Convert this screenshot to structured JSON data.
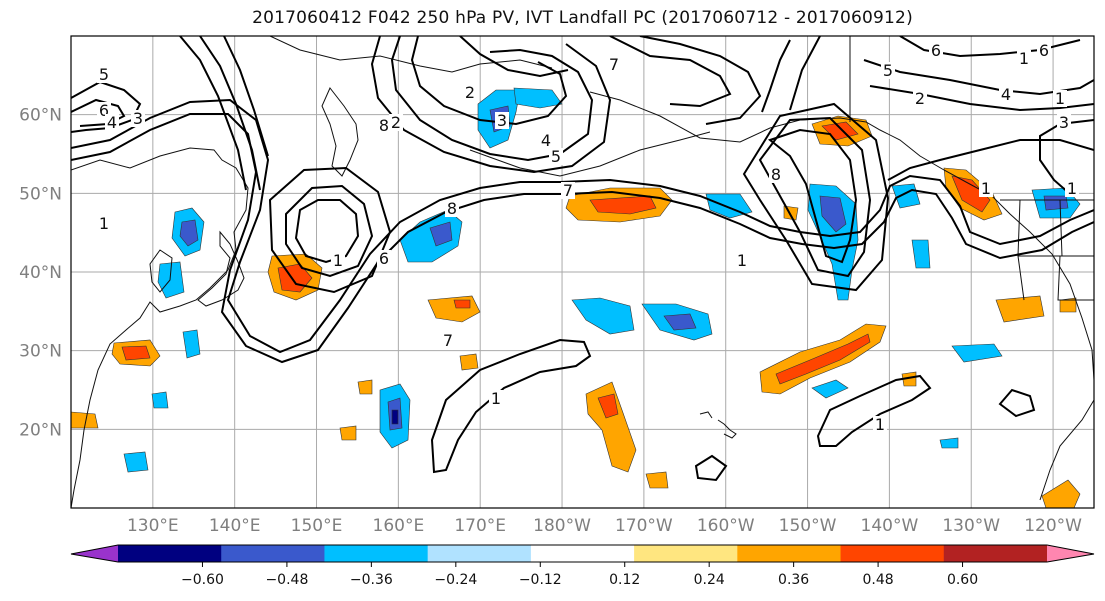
{
  "title": "2017060412 F042 250 hPa PV, IVT Landfall PC (2017060712 - 2017060912)",
  "map": {
    "extent": {
      "lon": [
        120,
        245
      ],
      "lat": [
        10,
        70
      ]
    },
    "lat_ticks": [
      {
        "lat": 20,
        "label": "20°N"
      },
      {
        "lat": 30,
        "label": "30°N"
      },
      {
        "lat": 40,
        "label": "40°N"
      },
      {
        "lat": 50,
        "label": "50°N"
      },
      {
        "lat": 60,
        "label": "60°N"
      }
    ],
    "lon_ticks": [
      {
        "lon": 130,
        "label": "130°E"
      },
      {
        "lon": 140,
        "label": "140°E"
      },
      {
        "lon": 150,
        "label": "150°E"
      },
      {
        "lon": 160,
        "label": "160°E"
      },
      {
        "lon": 170,
        "label": "170°E"
      },
      {
        "lon": 180,
        "label": "180°W"
      },
      {
        "lon": 190,
        "label": "170°W"
      },
      {
        "lon": 200,
        "label": "160°W"
      },
      {
        "lon": 210,
        "label": "150°W"
      },
      {
        "lon": 220,
        "label": "140°W"
      },
      {
        "lon": 230,
        "label": "130°W"
      },
      {
        "lon": 240,
        "label": "120°W"
      }
    ],
    "gridlines": true,
    "contour_labels": [
      "5",
      "6",
      "4",
      "3",
      "1",
      "7",
      "8",
      "6",
      "1",
      "7",
      "8",
      "1",
      "2",
      "3",
      "4",
      "5",
      "7",
      "2",
      "6",
      "1",
      "1",
      "1",
      "1",
      "8",
      "5",
      "2",
      "4",
      "3",
      "6",
      "1",
      "1"
    ],
    "fill_colors": {
      "neg_048_060": "#000080",
      "neg_036_048": "#3a59cc",
      "neg_024_036": "#00bfff",
      "neg_012_024": "#aadfff",
      "pos_012_024": "#ffe680",
      "pos_024_036": "#ffa500",
      "pos_036_048": "#ff4500",
      "pos_048_060": "#b22222",
      "pos_over_060": "#ff86b0",
      "neg_under_060": "#9933cc"
    }
  },
  "colorbar": {
    "colors": [
      "#9933cc",
      "#000080",
      "#3a59cc",
      "#00bfff",
      "#b0e2ff",
      "#ffffff",
      "#ffe680",
      "#ffa500",
      "#ff4500",
      "#b22222",
      "#ff86b0"
    ],
    "tick_labels": [
      "−0.60",
      "−0.48",
      "−0.36",
      "−0.24",
      "−0.12",
      "0.12",
      "0.24",
      "0.36",
      "0.48",
      "0.60"
    ]
  }
}
